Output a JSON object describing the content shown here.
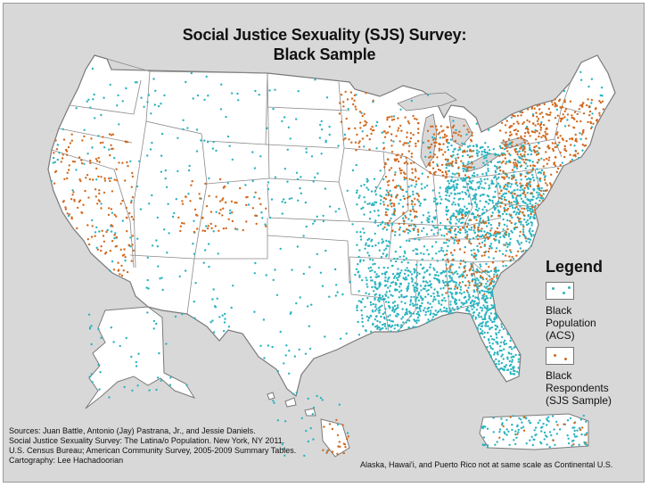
{
  "title": {
    "line1": "Social Justice Sexuality (SJS) Survey:",
    "line2": "Black Sample"
  },
  "legend": {
    "title": "Legend",
    "items": [
      {
        "label_lines": [
          "Black",
          "Population",
          "(ACS)"
        ],
        "color": "#2ab3c0"
      },
      {
        "label_lines": [
          "Black",
          "Respondents",
          "(SJS Sample)"
        ],
        "color": "#d2691e"
      }
    ]
  },
  "sources": [
    "Sources: Juan Battle, Antonio (Jay) Pastrana, Jr., and Jessie Daniels.",
    "Social Justice Sexuality Survey: The Latina/o Population. New York, NY 2011.",
    "U.S. Census Bureau; American Community Survey, 2005-2009 Summary Tables.",
    "Cartography: Lee Hachadoorian"
  ],
  "scale_note": "Alaska, Hawai'i, and Puerto Rico not at same scale as Continental U.S.",
  "colors": {
    "background": "#d8d8d8",
    "land": "#ffffff",
    "border": "#7a7a7a",
    "acs_dot": "#2ab3c0",
    "sjs_dot": "#d2691e"
  }
}
